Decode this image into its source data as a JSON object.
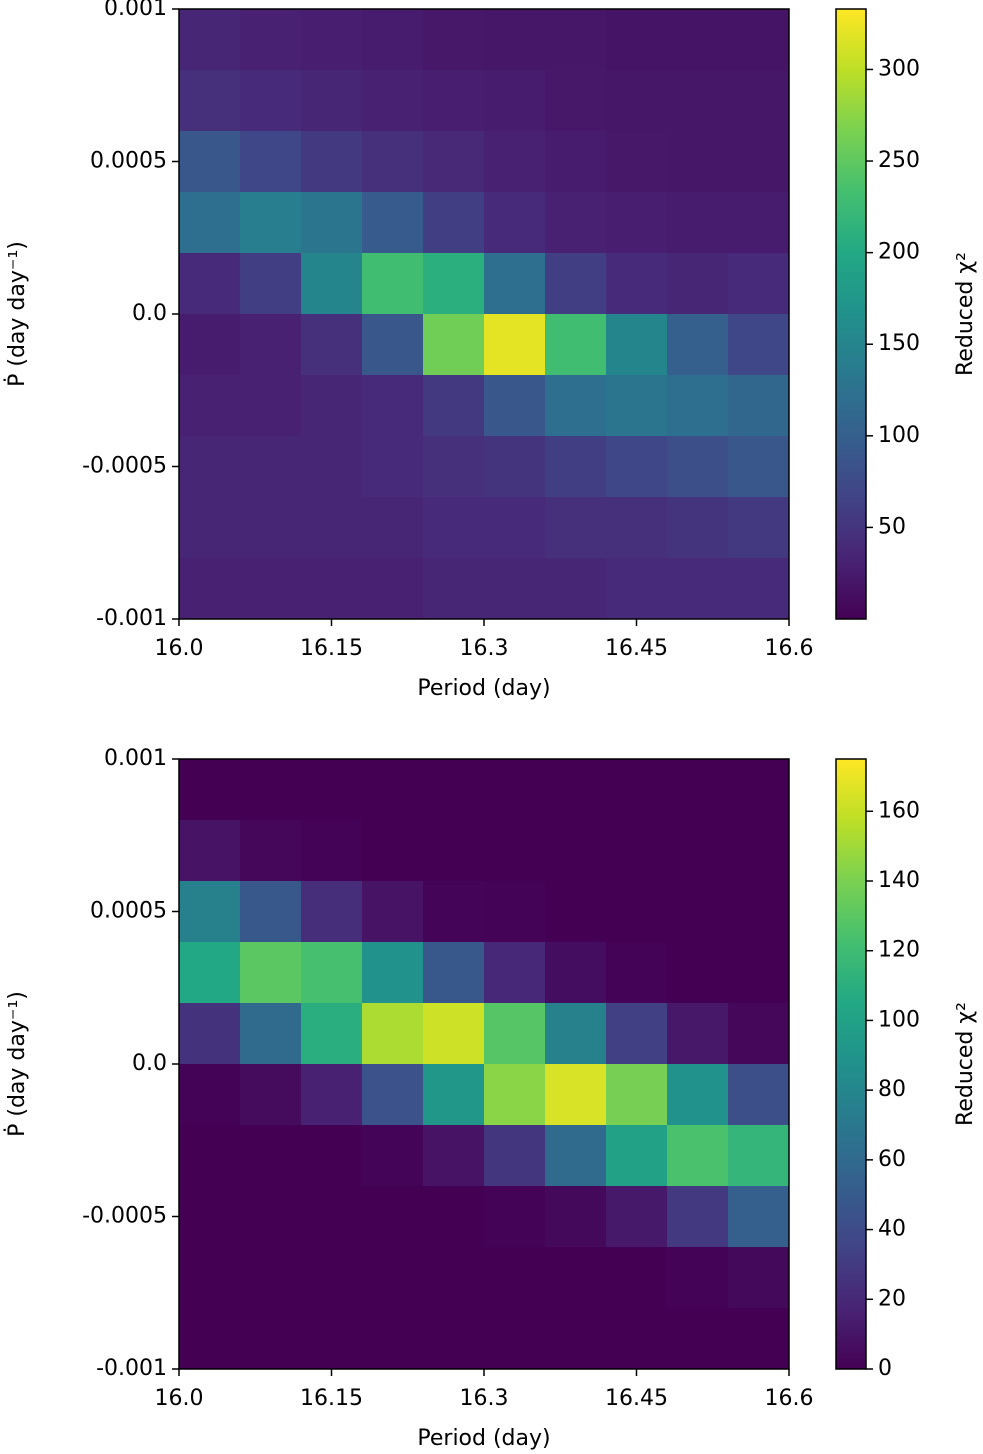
{
  "chart_data": [
    {
      "type": "heatmap",
      "xlabel": "Period (day)",
      "ylabel": "Ṗ (day day⁻¹)",
      "x": [
        16.03,
        16.09,
        16.15,
        16.21,
        16.27,
        16.33,
        16.39,
        16.45,
        16.51,
        16.57
      ],
      "y": [
        0.0009,
        0.0007,
        0.0005,
        0.0003,
        0.0001,
        -0.0001,
        -0.0003,
        -0.0005,
        -0.0007,
        -0.0009
      ],
      "values": [
        [
          35,
          30,
          28,
          25,
          22,
          20,
          20,
          18,
          18,
          18
        ],
        [
          45,
          40,
          35,
          30,
          28,
          25,
          22,
          20,
          20,
          20
        ],
        [
          90,
          70,
          55,
          45,
          38,
          30,
          25,
          22,
          20,
          20
        ],
        [
          120,
          140,
          130,
          95,
          60,
          40,
          30,
          28,
          25,
          25
        ],
        [
          40,
          60,
          150,
          230,
          210,
          120,
          60,
          40,
          35,
          40
        ],
        [
          25,
          30,
          45,
          90,
          260,
          320,
          230,
          150,
          100,
          70
        ],
        [
          30,
          30,
          35,
          40,
          55,
          90,
          120,
          130,
          120,
          110
        ],
        [
          35,
          35,
          35,
          40,
          45,
          50,
          60,
          70,
          80,
          90
        ],
        [
          35,
          35,
          35,
          35,
          40,
          40,
          45,
          45,
          50,
          55
        ],
        [
          30,
          30,
          30,
          30,
          35,
          35,
          35,
          40,
          40,
          40
        ]
      ],
      "xlim": [
        16.0,
        16.6
      ],
      "ylim": [
        -0.001,
        0.001
      ],
      "xticks": [
        {
          "value": 16,
          "label": "16.0"
        },
        16.15,
        16.3,
        16.45,
        16.6
      ],
      "yticks": [
        -0.001,
        -0.0005,
        {
          "value": 0,
          "label": "0.0"
        },
        0.0005,
        0.001
      ],
      "colormap": "viridis",
      "colorbar": {
        "label": "Reduced χ²",
        "lim": [
          0,
          333
        ],
        "ticks": [
          50,
          100,
          150,
          200,
          250,
          300
        ]
      }
    },
    {
      "type": "heatmap",
      "xlabel": "Period (day)",
      "ylabel": "Ṗ (day day⁻¹)",
      "x": [
        16.03,
        16.09,
        16.15,
        16.21,
        16.27,
        16.33,
        16.39,
        16.45,
        16.51,
        16.57
      ],
      "y": [
        0.0009,
        0.0007,
        0.0005,
        0.0003,
        0.0001,
        -0.0001,
        -0.0003,
        -0.0005,
        -0.0007,
        -0.0009
      ],
      "values": [
        [
          0,
          0,
          0,
          0,
          0,
          0,
          0,
          0,
          0,
          0
        ],
        [
          9,
          3,
          1,
          0,
          0,
          0,
          0,
          0,
          0,
          0
        ],
        [
          76,
          48,
          23,
          9,
          2,
          1,
          0,
          0,
          0,
          0
        ],
        [
          105,
          130,
          123,
          88,
          48,
          19,
          6,
          1,
          0,
          0
        ],
        [
          25,
          60,
          109,
          153,
          162,
          128,
          76,
          33,
          11,
          3
        ],
        [
          1,
          5,
          16,
          44,
          92,
          144,
          165,
          139,
          88,
          42
        ],
        [
          0,
          0,
          0,
          2,
          9,
          27,
          61,
          100,
          124,
          115
        ],
        [
          0,
          0,
          0,
          0,
          0,
          1,
          4,
          12,
          29,
          53
        ],
        [
          0,
          0,
          0,
          0,
          0,
          0,
          0,
          0,
          1,
          4
        ],
        [
          0,
          0,
          0,
          0,
          0,
          0,
          0,
          0,
          0,
          0
        ]
      ],
      "xlim": [
        16.0,
        16.6
      ],
      "ylim": [
        -0.001,
        0.001
      ],
      "xticks": [
        {
          "value": 16,
          "label": "16.0"
        },
        16.15,
        16.3,
        16.45,
        16.6
      ],
      "yticks": [
        -0.001,
        -0.0005,
        {
          "value": 0,
          "label": "0.0"
        },
        0.0005,
        0.001
      ],
      "colormap": "viridis",
      "colorbar": {
        "label": "Reduced χ²",
        "lim": [
          0,
          175
        ],
        "ticks": [
          0,
          20,
          40,
          60,
          80,
          100,
          120,
          140,
          160
        ]
      }
    }
  ]
}
